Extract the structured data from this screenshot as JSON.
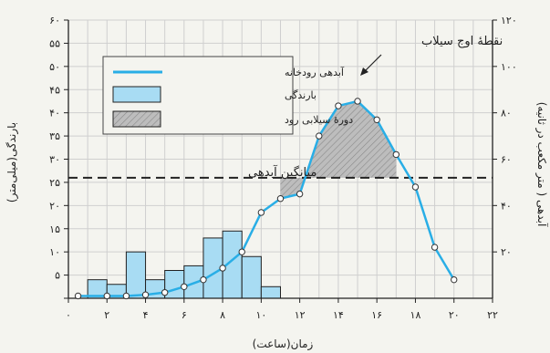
{
  "chart_data": {
    "type": "line",
    "xlabel": "زمان(ساعت)",
    "ylabel_left": "بارندگی(میلی‌متر)",
    "ylabel_right": "آبدهی ( متر مکعب در ثانیه)",
    "x_ticks": [
      0,
      2,
      4,
      6,
      8,
      10,
      12,
      14,
      16,
      18,
      20,
      22
    ],
    "x_tick_labels": [
      "۰",
      "۲",
      "۴",
      "۶",
      "۸",
      "۱۰",
      "۱۲",
      "۱۴",
      "۱۶",
      "۱۸",
      "۲۰",
      "۲۲"
    ],
    "xlim": [
      0,
      22
    ],
    "y_left_ticks": [
      0,
      5,
      10,
      15,
      20,
      25,
      30,
      35,
      40,
      45,
      50,
      55,
      60
    ],
    "y_left_tick_labels": [
      "",
      "۵",
      "۱۰",
      "۱۵",
      "۲۰",
      "۲۵",
      "۳۰",
      "۳۵",
      "۴۰",
      "۴۵",
      "۵۰",
      "۵۵",
      "۶۰"
    ],
    "y_left_lim": [
      0,
      60
    ],
    "y_right_ticks": [
      20,
      40,
      60,
      80,
      100,
      120
    ],
    "y_right_tick_labels": [
      "۲۰",
      "۴۰",
      "۶۰",
      "۸۰",
      "۱۰۰",
      "۱۲۰"
    ],
    "y_right_lim": [
      0,
      120
    ],
    "grid": true,
    "legend": {
      "placement": "top-left",
      "entries": [
        {
          "label": "آبدهی رودخانه",
          "kind": "line"
        },
        {
          "label": "بارندگی",
          "kind": "bar"
        },
        {
          "label": "دورهٔ سیلابی رود",
          "kind": "hatch"
        }
      ]
    },
    "series": [
      {
        "name": "بارندگی",
        "type": "bar",
        "axis": "left",
        "x": [
          1.5,
          2.5,
          3.5,
          4.5,
          5.5,
          6.5,
          7.5,
          8.5,
          9.5,
          10.5
        ],
        "width": 1,
        "values": [
          4,
          3,
          10,
          4,
          6,
          7,
          13,
          14.5,
          9,
          2.5
        ],
        "color": "#a8dcf3"
      },
      {
        "name": "آبدهی رودخانه",
        "type": "line",
        "axis": "right",
        "x": [
          0.5,
          2,
          3,
          4,
          5,
          6,
          7,
          8,
          9,
          10,
          11,
          12,
          13,
          14,
          15,
          16,
          17,
          18,
          19,
          20
        ],
        "values": [
          1,
          1,
          1,
          1.5,
          2.5,
          5,
          8,
          13,
          20,
          37,
          43,
          45,
          70,
          83,
          85,
          77,
          62,
          48,
          22,
          8
        ],
        "color": "#29aee6"
      }
    ],
    "mean_discharge": {
      "value": 52,
      "axis": "right",
      "label": "میانگین آبدهی"
    },
    "flood_period": {
      "x_start": 11,
      "x_end": 17
    },
    "annotations": [
      {
        "text": "نقطهٔ اوج سیلاب",
        "x": 15,
        "y": 85,
        "axis": "right"
      }
    ],
    "colors": {
      "line": "#29aee6",
      "bar_fill": "#a8dcf3",
      "bar_stroke": "#222222",
      "hatch_fill": "#bdbdbd",
      "grid": "#cfcfcf",
      "background": "#f4f4ef"
    }
  }
}
